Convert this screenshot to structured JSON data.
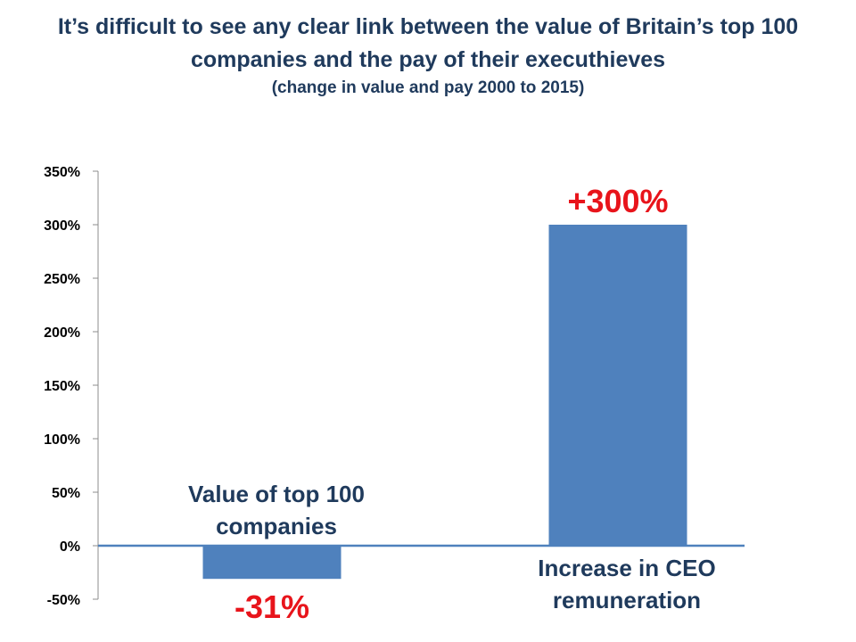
{
  "colors": {
    "title": "#1f3a5c",
    "bar": "#4f81bd",
    "data_label": "#e8141b",
    "axis": "#4f81bd"
  },
  "chart_data": {
    "type": "bar",
    "title": "It’s difficult to see any clear link between the value of Britain’s top 100 companies and the pay of their executhieves",
    "subtitle": "(change in value and pay 2000 to 2015)",
    "categories": [
      "Value of top 100 companies",
      "Increase in CEO remuneration"
    ],
    "values": [
      -31,
      300
    ],
    "data_labels": [
      "-31%",
      "+300%"
    ],
    "ylim": [
      -50,
      350
    ],
    "yticks": [
      "350%",
      "300%",
      "250%",
      "200%",
      "150%",
      "100%",
      "50%",
      "0%",
      "-50%"
    ],
    "ytick_values": [
      350,
      300,
      250,
      200,
      150,
      100,
      50,
      0,
      -50
    ],
    "xlabel": "",
    "ylabel": "",
    "grid": false,
    "legend": false
  }
}
